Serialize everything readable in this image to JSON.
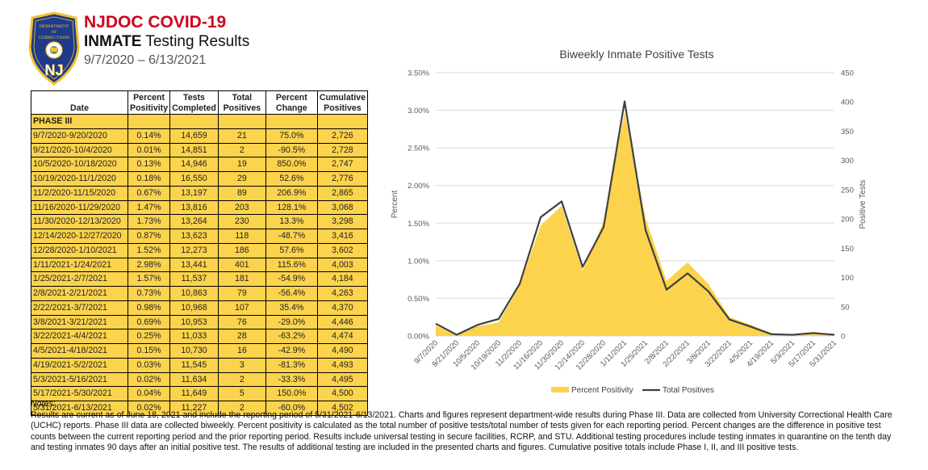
{
  "header": {
    "title": "NJDOC COVID-19",
    "subtitle_bold": "INMATE",
    "subtitle_rest": " Testing Results",
    "date_range": "9/7/2020 – 6/13/2021",
    "badge": {
      "top": "DEPARTMENT",
      "of": "OF",
      "dept": "CORRECTIONS",
      "initials": "NJ"
    }
  },
  "table": {
    "headers": [
      "Date",
      "Percent Positivity",
      "Tests Completed",
      "Total Positives",
      "Percent Change",
      "Cumulative Positives"
    ],
    "header_lines": [
      [
        "",
        "Date"
      ],
      [
        "Percent",
        "Positivity"
      ],
      [
        "Tests",
        "Completed"
      ],
      [
        "Total",
        "Positives"
      ],
      [
        "Percent",
        "Change"
      ],
      [
        "Cumulative",
        "Positives"
      ]
    ],
    "phase_label": "PHASE III",
    "rows": [
      [
        "9/7/2020-9/20/2020",
        "0.14%",
        "14,659",
        "21",
        "75.0%",
        "2,726"
      ],
      [
        "9/21/2020-10/4/2020",
        "0.01%",
        "14,851",
        "2",
        "-90.5%",
        "2,728"
      ],
      [
        "10/5/2020-10/18/2020",
        "0.13%",
        "14,946",
        "19",
        "850.0%",
        "2,747"
      ],
      [
        "10/19/2020-11/1/2020",
        "0.18%",
        "16,550",
        "29",
        "52.6%",
        "2,776"
      ],
      [
        "11/2/2020-11/15/2020",
        "0.67%",
        "13,197",
        "89",
        "206.9%",
        "2,865"
      ],
      [
        "11/16/2020-11/29/2020",
        "1.47%",
        "13,816",
        "203",
        "128.1%",
        "3,068"
      ],
      [
        "11/30/2020-12/13/2020",
        "1.73%",
        "13,264",
        "230",
        "13.3%",
        "3,298"
      ],
      [
        "12/14/2020-12/27/2020",
        "0.87%",
        "13,623",
        "118",
        "-48.7%",
        "3,416"
      ],
      [
        "12/28/2020-1/10/2021",
        "1.52%",
        "12,273",
        "186",
        "57.6%",
        "3,602"
      ],
      [
        "1/11/2021-1/24/2021",
        "2.98%",
        "13,441",
        "401",
        "115.6%",
        "4,003"
      ],
      [
        "1/25/2021-2/7/2021",
        "1.57%",
        "11,537",
        "181",
        "-54.9%",
        "4,184"
      ],
      [
        "2/8/2021-2/21/2021",
        "0.73%",
        "10,863",
        "79",
        "-56.4%",
        "4,263"
      ],
      [
        "2/22/2021-3/7/2021",
        "0.98%",
        "10,968",
        "107",
        "35.4%",
        "4,370"
      ],
      [
        "3/8/2021-3/21/2021",
        "0.69%",
        "10,953",
        "76",
        "-29.0%",
        "4,446"
      ],
      [
        "3/22/2021-4/4/2021",
        "0.25%",
        "11,033",
        "28",
        "-63.2%",
        "4,474"
      ],
      [
        "4/5/2021-4/18/2021",
        "0.15%",
        "10,730",
        "16",
        "-42.9%",
        "4,490"
      ],
      [
        "4/19/2021-5/2/2021",
        "0.03%",
        "11,545",
        "3",
        "-81.3%",
        "4,493"
      ],
      [
        "5/3/2021-5/16/2021",
        "0.02%",
        "11,634",
        "2",
        "-33.3%",
        "4,495"
      ],
      [
        "5/17/2021-5/30/2021",
        "0.04%",
        "11,649",
        "5",
        "150.0%",
        "4,500"
      ],
      [
        "5/31/2021-6/13/2021",
        "0.02%",
        "11,227",
        "2",
        "-60.0%",
        "4,502"
      ]
    ]
  },
  "chart_data": {
    "type": "area",
    "title": "Biweekly Inmate Positive Tests",
    "categories": [
      "9/7/2020",
      "9/21/2020",
      "10/5/2020",
      "10/19/2020",
      "11/2/2020",
      "11/16/2020",
      "11/30/2020",
      "12/14/2020",
      "12/28/2020",
      "1/11/2021",
      "1/25/2021",
      "2/8/2021",
      "2/22/2021",
      "3/8/2021",
      "3/22/2021",
      "4/5/2021",
      "4/19/2021",
      "5/3/2021",
      "5/17/2021",
      "5/31/2021"
    ],
    "series": [
      {
        "name": "Percent Positivity",
        "type": "area",
        "axis": "left",
        "color": "#fcd34d",
        "values": [
          0.14,
          0.01,
          0.13,
          0.18,
          0.67,
          1.47,
          1.73,
          0.87,
          1.52,
          2.98,
          1.57,
          0.73,
          0.98,
          0.69,
          0.25,
          0.15,
          0.03,
          0.02,
          0.04,
          0.02
        ]
      },
      {
        "name": "Total Positives",
        "type": "line",
        "axis": "right",
        "color": "#404040",
        "values": [
          21,
          2,
          19,
          29,
          89,
          203,
          230,
          118,
          186,
          401,
          181,
          79,
          107,
          76,
          28,
          16,
          3,
          2,
          5,
          2
        ]
      }
    ],
    "ylabel": "Percent",
    "y2label": "Positive Tests",
    "ylim": [
      0,
      3.5
    ],
    "y2lim": [
      0,
      450
    ],
    "yticks": [
      "0.00%",
      "0.50%",
      "1.00%",
      "1.50%",
      "2.00%",
      "2.50%",
      "3.00%",
      "3.50%"
    ],
    "y2ticks": [
      "0",
      "50",
      "100",
      "150",
      "200",
      "250",
      "300",
      "350",
      "400",
      "450"
    ],
    "grid": true,
    "legend": "bottom"
  },
  "notes": {
    "heading": "Notes:",
    "text": "Results are current as of June 18, 2021 and include the reporting period of 5/31/2021-6/13/2021. Charts and figures represent department-wide results during Phase III. Data are collected from University Correctional Health Care (UCHC) reports. Phase III data are collected biweekly. Percent positivity is calculated as the total number of positive tests/total number of tests given for each reporting period. Percent changes are the difference in positive test counts between the current reporting period and the prior reporting period. Results include universal testing in secure facilities, RCRP, and STU. Additional testing procedures include testing inmates in quarantine on the tenth day and testing inmates 90 days after an initial positive test. The results of additional testing are included in the presented charts and figures. Cumulative positive totals include Phase I, II, and III positive tests."
  }
}
